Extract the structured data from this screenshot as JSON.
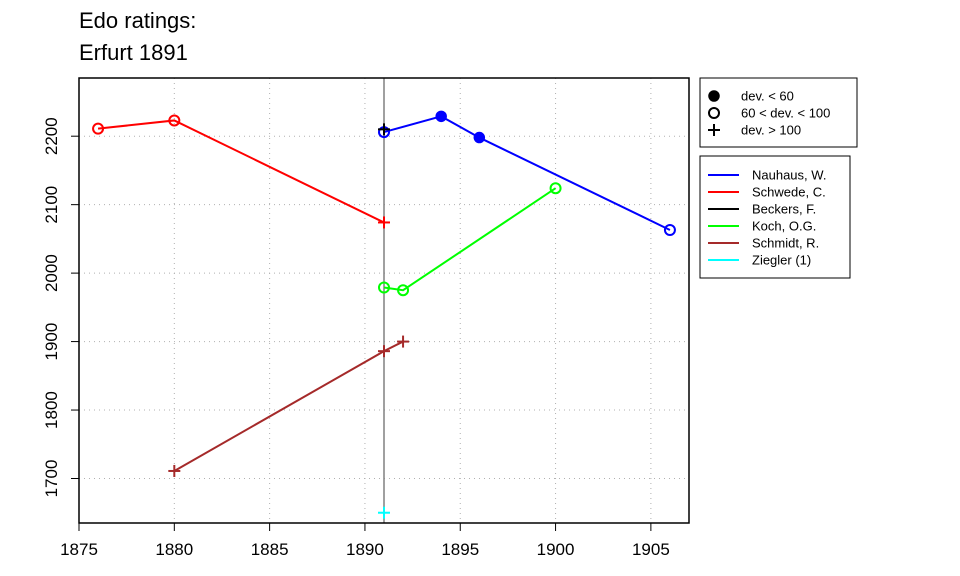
{
  "chart_data": {
    "type": "line",
    "title": "Edo ratings:",
    "subtitle": "Erfurt 1891",
    "xlabel": "",
    "ylabel": "",
    "xlim": [
      1875,
      1907
    ],
    "ylim": [
      1635,
      2285
    ],
    "x_ticks": [
      "1875",
      "1880",
      "1885",
      "1890",
      "1895",
      "1900",
      "1905"
    ],
    "y_ticks": [
      "1700",
      "1800",
      "1900",
      "2000",
      "2100",
      "2200"
    ],
    "grid": true,
    "reference_line_x": 1891,
    "reference_line_color": "#808080",
    "series": [
      {
        "name": "Nauhaus, W.",
        "color": "#0000ff",
        "points": [
          {
            "x": 1891,
            "y": 2206,
            "marker": "open"
          },
          {
            "x": 1894,
            "y": 2229,
            "marker": "filled"
          },
          {
            "x": 1896,
            "y": 2198,
            "marker": "filled"
          },
          {
            "x": 1906,
            "y": 2063,
            "marker": "open"
          }
        ]
      },
      {
        "name": "Schwede, C.",
        "color": "#ff0000",
        "points": [
          {
            "x": 1876,
            "y": 2211,
            "marker": "open"
          },
          {
            "x": 1880,
            "y": 2223,
            "marker": "open"
          },
          {
            "x": 1891,
            "y": 2074,
            "marker": "plus"
          }
        ]
      },
      {
        "name": "Beckers, F.",
        "color": "#000000",
        "points": [
          {
            "x": 1891,
            "y": 2210,
            "marker": "plus"
          }
        ]
      },
      {
        "name": "Koch, O.G.",
        "color": "#00ff00",
        "points": [
          {
            "x": 1891,
            "y": 1979,
            "marker": "open"
          },
          {
            "x": 1892,
            "y": 1975,
            "marker": "open"
          },
          {
            "x": 1900,
            "y": 2124,
            "marker": "open"
          }
        ]
      },
      {
        "name": "Schmidt, R.",
        "color": "#a52a2a",
        "points": [
          {
            "x": 1880,
            "y": 1711,
            "marker": "plus"
          },
          {
            "x": 1891,
            "y": 1886,
            "marker": "plus"
          },
          {
            "x": 1892,
            "y": 1900,
            "marker": "plus"
          }
        ]
      },
      {
        "name": "Ziegler (1)",
        "color": "#00ffff",
        "points": [
          {
            "x": 1891,
            "y": 1650,
            "marker": "plus"
          }
        ]
      }
    ],
    "marker_legend": [
      {
        "label": "dev. < 60",
        "marker": "filled"
      },
      {
        "label": "60 < dev. < 100",
        "marker": "open"
      },
      {
        "label": "dev. > 100",
        "marker": "plus"
      }
    ],
    "legend_placement": "right"
  }
}
